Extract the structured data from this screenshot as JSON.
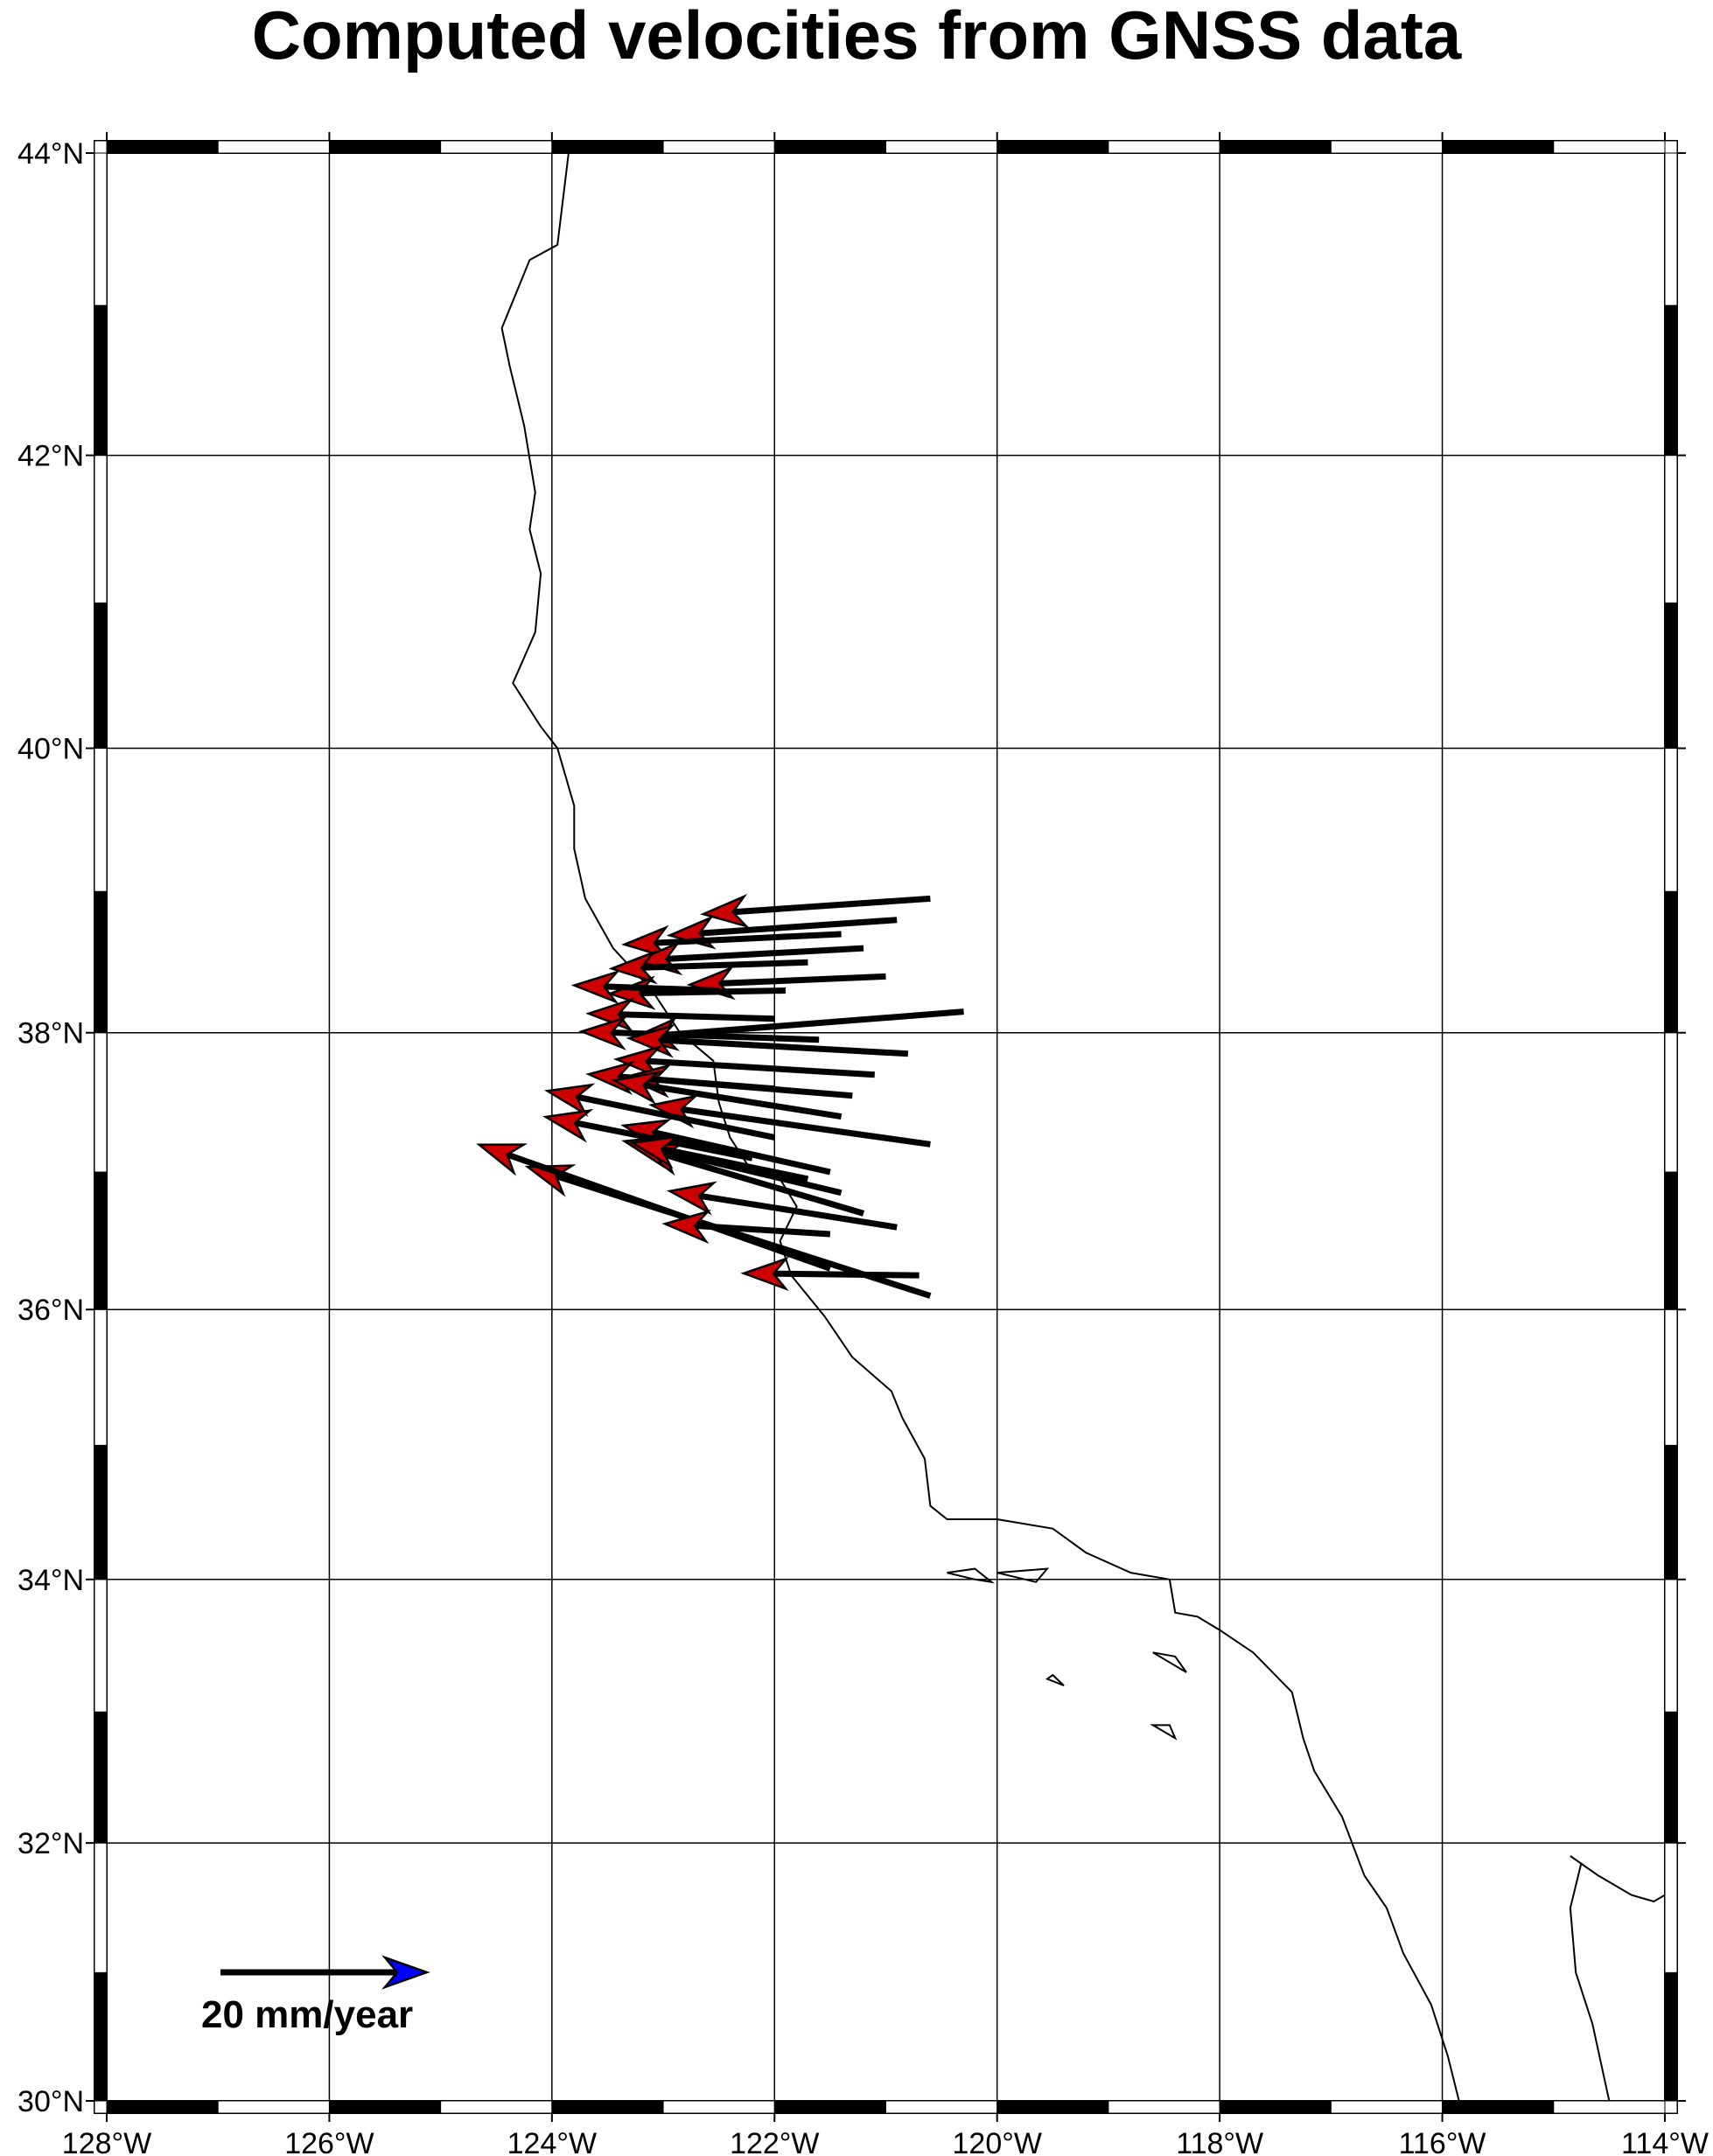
{
  "title": "Computed velocities from GNSS data",
  "map": {
    "projection": "mercator",
    "lon_range": [
      -128,
      -114
    ],
    "lat_range": [
      30,
      44
    ],
    "frame": "checkerboard",
    "grid": true,
    "gridline_interval_deg": 2,
    "lon_ticks": [
      -128,
      -126,
      -124,
      -122,
      -120,
      -118,
      -116,
      -114
    ],
    "lat_ticks": [
      30,
      32,
      34,
      36,
      38,
      40,
      42,
      44
    ],
    "lon_tick_labels": [
      "128°W",
      "126°W",
      "124°W",
      "122°W",
      "120°W",
      "118°W",
      "116°W",
      "114°W"
    ],
    "lat_tick_labels": [
      "30°N",
      "32°N",
      "34°N",
      "36°N",
      "38°N",
      "40°N",
      "42°N",
      "44°N"
    ]
  },
  "colors": {
    "arrow_head": "#cc0000",
    "arrow_shaft": "#000000",
    "legend_arrow_head": "#0000ff",
    "coastline": "#000000",
    "gridline": "#000000"
  },
  "legend": {
    "label": "20 mm/year",
    "velocity_mm_per_yr": 20,
    "position": "bottom-left"
  },
  "coastline": {
    "main": [
      [
        -123.85,
        44.0
      ],
      [
        -123.95,
        43.4
      ],
      [
        -124.2,
        43.3
      ],
      [
        -124.45,
        42.85
      ],
      [
        -124.38,
        42.6
      ],
      [
        -124.25,
        42.2
      ],
      [
        -124.15,
        41.75
      ],
      [
        -124.2,
        41.5
      ],
      [
        -124.1,
        41.2
      ],
      [
        -124.15,
        40.8
      ],
      [
        -124.35,
        40.45
      ],
      [
        -124.1,
        40.15
      ],
      [
        -123.95,
        40.0
      ],
      [
        -123.8,
        39.6
      ],
      [
        -123.8,
        39.3
      ],
      [
        -123.7,
        38.95
      ],
      [
        -123.45,
        38.6
      ],
      [
        -123.1,
        38.3
      ],
      [
        -122.85,
        38.0
      ],
      [
        -122.55,
        37.8
      ],
      [
        -122.5,
        37.5
      ],
      [
        -122.4,
        37.25
      ],
      [
        -122.2,
        37.0
      ],
      [
        -121.95,
        36.95
      ],
      [
        -121.8,
        36.75
      ],
      [
        -121.95,
        36.5
      ],
      [
        -121.85,
        36.25
      ],
      [
        -121.55,
        35.95
      ],
      [
        -121.3,
        35.65
      ],
      [
        -120.95,
        35.4
      ],
      [
        -120.85,
        35.2
      ],
      [
        -120.65,
        34.9
      ],
      [
        -120.6,
        34.55
      ],
      [
        -120.45,
        34.45
      ],
      [
        -120.0,
        34.45
      ],
      [
        -119.5,
        34.38
      ],
      [
        -119.2,
        34.2
      ],
      [
        -118.8,
        34.05
      ],
      [
        -118.45,
        34.0
      ],
      [
        -118.4,
        33.75
      ],
      [
        -118.2,
        33.72
      ],
      [
        -118.0,
        33.62
      ],
      [
        -117.7,
        33.45
      ],
      [
        -117.35,
        33.15
      ],
      [
        -117.25,
        32.8
      ],
      [
        -117.15,
        32.55
      ],
      [
        -116.9,
        32.2
      ],
      [
        -116.7,
        31.75
      ],
      [
        -116.5,
        31.5
      ],
      [
        -116.35,
        31.15
      ],
      [
        -116.1,
        30.75
      ],
      [
        -115.95,
        30.35
      ],
      [
        -115.85,
        30.0
      ]
    ],
    "gulf_west": [
      [
        -114.75,
        31.85
      ],
      [
        -114.85,
        31.5
      ],
      [
        -114.8,
        31.0
      ],
      [
        -114.65,
        30.6
      ],
      [
        -114.55,
        30.2
      ],
      [
        -114.5,
        30.0
      ]
    ],
    "gulf_east": [
      [
        -114.85,
        31.9
      ],
      [
        -114.6,
        31.75
      ],
      [
        -114.3,
        31.6
      ],
      [
        -114.1,
        31.55
      ],
      [
        -114.0,
        31.6
      ]
    ],
    "islands": [
      [
        [
          -120.45,
          34.05
        ],
        [
          -120.2,
          34.0
        ],
        [
          -120.05,
          33.98
        ],
        [
          -120.2,
          34.08
        ],
        [
          -120.45,
          34.05
        ]
      ],
      [
        [
          -120.0,
          34.05
        ],
        [
          -119.55,
          34.08
        ],
        [
          -119.65,
          33.98
        ],
        [
          -120.0,
          34.05
        ]
      ],
      [
        [
          -118.6,
          33.45
        ],
        [
          -118.3,
          33.3
        ],
        [
          -118.4,
          33.42
        ],
        [
          -118.6,
          33.45
        ]
      ],
      [
        [
          -119.55,
          33.25
        ],
        [
          -119.4,
          33.2
        ],
        [
          -119.5,
          33.28
        ],
        [
          -119.55,
          33.25
        ]
      ],
      [
        [
          -118.6,
          32.9
        ],
        [
          -118.4,
          32.8
        ],
        [
          -118.45,
          32.9
        ],
        [
          -118.6,
          32.9
        ]
      ]
    ]
  },
  "vectors": [
    {
      "lon": -120.6,
      "lat": 38.95,
      "ve": -22,
      "vn": -1.5
    },
    {
      "lon": -120.9,
      "lat": 38.8,
      "ve": -22,
      "vn": -1.5
    },
    {
      "lon": -121.4,
      "lat": 38.7,
      "ve": -21,
      "vn": -1.0
    },
    {
      "lon": -121.2,
      "lat": 38.6,
      "ve": -22,
      "vn": -1.2
    },
    {
      "lon": -121.7,
      "lat": 38.5,
      "ve": -19,
      "vn": -0.6
    },
    {
      "lon": -121.0,
      "lat": 38.4,
      "ve": -19,
      "vn": -0.8
    },
    {
      "lon": -121.9,
      "lat": 38.3,
      "ve": -17,
      "vn": -0.3
    },
    {
      "lon": -120.3,
      "lat": 38.15,
      "ve": -32,
      "vn": -2.5
    },
    {
      "lon": -122.5,
      "lat": 38.3,
      "ve": -14,
      "vn": 0.5
    },
    {
      "lon": -122.0,
      "lat": 38.1,
      "ve": -18,
      "vn": 0.5
    },
    {
      "lon": -121.6,
      "lat": 37.95,
      "ve": -23,
      "vn": 0.8
    },
    {
      "lon": -120.8,
      "lat": 37.85,
      "ve": -27,
      "vn": 1.5
    },
    {
      "lon": -121.1,
      "lat": 37.7,
      "ve": -25,
      "vn": 1.5
    },
    {
      "lon": -121.3,
      "lat": 37.55,
      "ve": -22,
      "vn": 1.8
    },
    {
      "lon": -122.0,
      "lat": 37.6,
      "ve": -18,
      "vn": 1.4
    },
    {
      "lon": -120.6,
      "lat": 37.2,
      "ve": -27,
      "vn": 3.8
    },
    {
      "lon": -121.4,
      "lat": 37.4,
      "ve": -22,
      "vn": 3.5
    },
    {
      "lon": -121.5,
      "lat": 37.0,
      "ve": -20,
      "vn": 4.5
    },
    {
      "lon": -121.2,
      "lat": 36.7,
      "ve": -22,
      "vn": 6.5
    },
    {
      "lon": -121.4,
      "lat": 36.85,
      "ve": -21,
      "vn": 5.0
    },
    {
      "lon": -120.9,
      "lat": 36.6,
      "ve": -22,
      "vn": 3.5
    },
    {
      "lon": -120.6,
      "lat": 36.1,
      "ve": -39,
      "vn": 12.5
    },
    {
      "lon": -121.5,
      "lat": 36.3,
      "ve": -34,
      "vn": 12.0
    },
    {
      "lon": -120.7,
      "lat": 36.25,
      "ve": -17,
      "vn": 0.2
    },
    {
      "lon": -122.0,
      "lat": 37.25,
      "ve": -22,
      "vn": 4.5
    },
    {
      "lon": -122.2,
      "lat": 37.1,
      "ve": -20,
      "vn": 4.0
    },
    {
      "lon": -121.7,
      "lat": 36.95,
      "ve": -17,
      "vn": 3.5
    },
    {
      "lon": -121.5,
      "lat": 36.55,
      "ve": -16,
      "vn": 1.0
    }
  ]
}
